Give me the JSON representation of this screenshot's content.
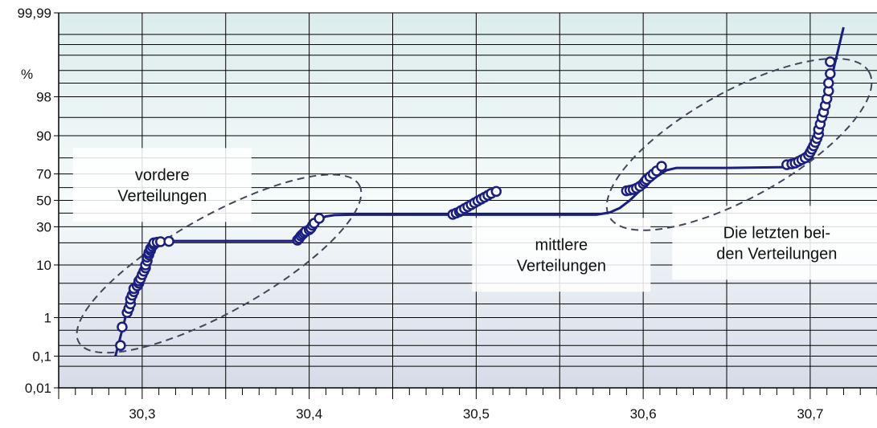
{
  "chart_data": {
    "type": "scatter",
    "title": "",
    "xlabel": "",
    "ylabel": "%",
    "y_scale": "normal-probability",
    "xlim": [
      30.25,
      30.74
    ],
    "ylim": [
      0.01,
      99.99
    ],
    "grid": true,
    "x_ticks": [
      {
        "value": 30.3,
        "label": "30,3"
      },
      {
        "value": 30.4,
        "label": "30,4"
      },
      {
        "value": 30.5,
        "label": "30,5"
      },
      {
        "value": 30.6,
        "label": "30,6"
      },
      {
        "value": 30.7,
        "label": "30,7"
      }
    ],
    "y_ticks": [
      {
        "value": 0.01,
        "label": "0,01"
      },
      {
        "value": 0.1,
        "label": "0,1"
      },
      {
        "value": 1,
        "label": "1"
      },
      {
        "value": 10,
        "label": "10"
      },
      {
        "value": 30,
        "label": "30"
      },
      {
        "value": 50,
        "label": "50"
      },
      {
        "value": 70,
        "label": "70"
      },
      {
        "value": 90,
        "label": "90"
      },
      {
        "value": 98,
        "label": "98"
      },
      {
        "value": 99.99,
        "label": "99,99"
      }
    ],
    "y_gridlines": [
      0.01,
      0.05,
      0.1,
      0.2,
      0.5,
      1,
      2,
      5,
      10,
      20,
      30,
      40,
      50,
      60,
      70,
      80,
      90,
      95,
      98,
      99,
      99.5,
      99.8,
      99.9,
      99.95,
      99.99
    ],
    "series": [
      {
        "color": "#1a1f80",
        "points": [
          [
            30.287,
            0.2
          ],
          [
            30.288,
            0.6
          ],
          [
            30.291,
            1.3
          ],
          [
            30.292,
            1.6
          ],
          [
            30.293,
            2.0
          ],
          [
            30.293,
            2.5
          ],
          [
            30.294,
            3.0
          ],
          [
            30.295,
            3.5
          ],
          [
            30.295,
            4.0
          ],
          [
            30.297,
            4.5
          ],
          [
            30.298,
            5.0
          ],
          [
            30.298,
            5.5
          ],
          [
            30.299,
            6.0
          ],
          [
            30.3,
            7.0
          ],
          [
            30.301,
            8.0
          ],
          [
            30.302,
            9.0
          ],
          [
            30.302,
            10.0
          ],
          [
            30.303,
            11.5
          ],
          [
            30.303,
            13.0
          ],
          [
            30.304,
            14.0
          ],
          [
            30.304,
            15.0
          ],
          [
            30.305,
            16.0
          ],
          [
            30.305,
            17.0
          ],
          [
            30.306,
            18.0
          ],
          [
            30.307,
            19.0
          ],
          [
            30.307,
            20.0
          ],
          [
            30.309,
            20.3
          ],
          [
            30.311,
            20.6
          ],
          [
            30.316,
            20.8
          ],
          [
            30.393,
            21.5
          ],
          [
            30.394,
            22.5
          ],
          [
            30.395,
            24.0
          ],
          [
            30.396,
            25.0
          ],
          [
            30.397,
            26.0
          ],
          [
            30.398,
            27.0
          ],
          [
            30.4,
            28.0
          ],
          [
            30.401,
            29.0
          ],
          [
            30.402,
            31.0
          ],
          [
            30.403,
            32.5
          ],
          [
            30.406,
            36.0
          ],
          [
            30.486,
            39.0
          ],
          [
            30.488,
            40.0
          ],
          [
            30.49,
            41.0
          ],
          [
            30.491,
            42.0
          ],
          [
            30.493,
            43.5
          ],
          [
            30.495,
            45.0
          ],
          [
            30.497,
            46.5
          ],
          [
            30.499,
            48.0
          ],
          [
            30.501,
            49.5
          ],
          [
            30.503,
            51.0
          ],
          [
            30.505,
            52.5
          ],
          [
            30.507,
            54.0
          ],
          [
            30.509,
            55.5
          ],
          [
            30.512,
            57.0
          ],
          [
            30.59,
            57.5
          ],
          [
            30.592,
            58.0
          ],
          [
            30.594,
            58.5
          ],
          [
            30.596,
            59.5
          ],
          [
            30.598,
            61.0
          ],
          [
            30.6,
            63.0
          ],
          [
            30.601,
            64.5
          ],
          [
            30.602,
            66.0
          ],
          [
            30.604,
            68.0
          ],
          [
            30.606,
            70.0
          ],
          [
            30.608,
            72.0
          ],
          [
            30.611,
            75.0
          ],
          [
            30.686,
            76.0
          ],
          [
            30.689,
            76.5
          ],
          [
            30.691,
            77.0
          ],
          [
            30.693,
            78.0
          ],
          [
            30.695,
            79.0
          ],
          [
            30.697,
            80.0
          ],
          [
            30.699,
            81.5
          ],
          [
            30.7,
            83.0
          ],
          [
            30.701,
            84.5
          ],
          [
            30.702,
            86.0
          ],
          [
            30.703,
            87.5
          ],
          [
            30.704,
            89.0
          ],
          [
            30.705,
            90.5
          ],
          [
            30.705,
            92.0
          ],
          [
            30.706,
            93.5
          ],
          [
            30.707,
            95.0
          ],
          [
            30.708,
            96.0
          ],
          [
            30.709,
            97.0
          ],
          [
            30.71,
            97.8
          ],
          [
            30.711,
            98.5
          ],
          [
            30.711,
            99.0
          ],
          [
            30.712,
            99.4
          ],
          [
            30.712,
            99.7
          ]
        ],
        "fit_line": [
          [
            30.284,
            0.1
          ],
          [
            30.288,
            0.5
          ],
          [
            30.292,
            2.0
          ],
          [
            30.296,
            5.0
          ],
          [
            30.3,
            9.0
          ],
          [
            30.304,
            15.0
          ],
          [
            30.308,
            20.0
          ],
          [
            30.313,
            21.0
          ],
          [
            30.35,
            21.0
          ],
          [
            30.39,
            21.0
          ],
          [
            30.394,
            22.5
          ],
          [
            30.398,
            26.5
          ],
          [
            30.402,
            31.0
          ],
          [
            30.406,
            35.0
          ],
          [
            30.41,
            37.5
          ],
          [
            30.415,
            38.5
          ],
          [
            30.425,
            38.8
          ],
          [
            30.45,
            38.8
          ],
          [
            30.5,
            38.8
          ],
          [
            30.55,
            38.8
          ],
          [
            30.572,
            38.8
          ],
          [
            30.58,
            40.5
          ],
          [
            30.586,
            44.0
          ],
          [
            30.592,
            50.0
          ],
          [
            30.6,
            60.0
          ],
          [
            30.608,
            68.0
          ],
          [
            30.614,
            72.5
          ],
          [
            30.62,
            74.0
          ],
          [
            30.65,
            74.0
          ],
          [
            30.686,
            74.5
          ],
          [
            30.693,
            77.5
          ],
          [
            30.699,
            82.0
          ],
          [
            30.704,
            90.0
          ],
          [
            30.708,
            96.0
          ],
          [
            30.712,
            99.0
          ],
          [
            30.716,
            99.8
          ],
          [
            30.72,
            99.97
          ]
        ]
      }
    ],
    "annotations": [
      {
        "lines": [
          "vordere",
          "Verteilungen"
        ]
      },
      {
        "lines": [
          "mittlere",
          "Verteilungen"
        ]
      },
      {
        "lines": [
          "Die letzten bei-",
          "den Verteilungen"
        ]
      }
    ]
  }
}
